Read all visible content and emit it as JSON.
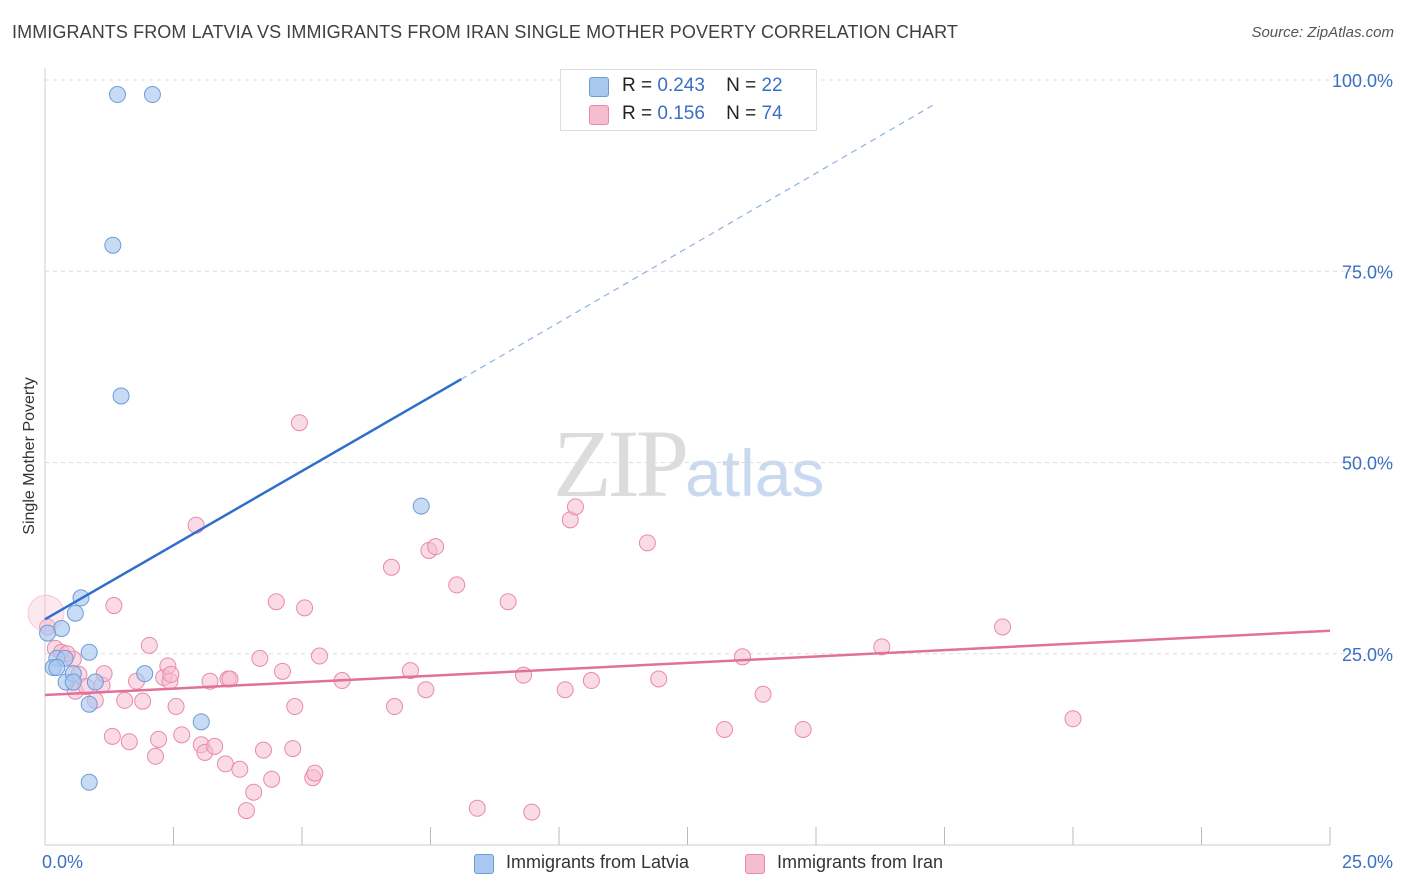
{
  "title": "IMMIGRANTS FROM LATVIA VS IMMIGRANTS FROM IRAN SINGLE MOTHER POVERTY CORRELATION CHART",
  "source": "Source: ZipAtlas.com",
  "watermark": {
    "zip": "ZIP",
    "atlas": "atlas"
  },
  "legend": {
    "rows": [
      {
        "r_label": "R =",
        "r_value": "0.243",
        "n_label": "N =",
        "n_value": "22"
      },
      {
        "r_label": "R =",
        "r_value": "0.156",
        "n_label": "N =",
        "n_value": "74"
      }
    ]
  },
  "colors": {
    "latvia_fill": "#a9c8f0",
    "latvia_stroke": "#6d9bd8",
    "latvia_line": "#2f6fcc",
    "iran_fill": "#f6bcd0",
    "iran_stroke": "#e88aab",
    "iran_line": "#e0719a",
    "axis_label": "#3b6fc4",
    "grid": "#dddddd"
  },
  "chart_data": {
    "type": "scatter",
    "title": "IMMIGRANTS FROM LATVIA VS IMMIGRANTS FROM IRAN SINGLE MOTHER POVERTY CORRELATION CHART",
    "xlabel": "",
    "ylabel": "Single Mother Poverty",
    "xlim": [
      0,
      25
    ],
    "ylim": [
      0,
      100
    ],
    "x_tick_labels": [
      "0.0%",
      "25.0%"
    ],
    "y_tick_labels": [
      "25.0%",
      "50.0%",
      "75.0%",
      "100.0%"
    ],
    "y_ticks": [
      25,
      50,
      75,
      100
    ],
    "grid": true,
    "legend_position": "top-center",
    "series": [
      {
        "name": "Immigrants from Latvia",
        "points": [
          [
            1.41,
            98.1
          ],
          [
            2.09,
            98.1
          ],
          [
            1.32,
            78.4
          ],
          [
            1.48,
            58.7
          ],
          [
            7.32,
            44.3
          ],
          [
            0.7,
            32.3
          ],
          [
            0.59,
            30.3
          ],
          [
            0.32,
            28.3
          ],
          [
            0.23,
            24.4
          ],
          [
            0.16,
            23.2
          ],
          [
            0.86,
            25.2
          ],
          [
            0.41,
            21.3
          ],
          [
            0.39,
            24.4
          ],
          [
            0.55,
            22.4
          ],
          [
            0.98,
            21.3
          ],
          [
            0.86,
            18.4
          ],
          [
            1.94,
            22.4
          ],
          [
            3.04,
            16.1
          ],
          [
            0.86,
            8.2
          ],
          [
            0.23,
            23.2
          ],
          [
            0.05,
            27.7
          ],
          [
            0.55,
            21.3
          ]
        ],
        "trend": {
          "x": [
            0,
            8.1
          ],
          "y": [
            29.5,
            60.9
          ],
          "dashed_to": {
            "x": 17.3,
            "y": 96.8
          }
        }
      },
      {
        "name": "Immigrants from Iran",
        "points": [
          [
            0.05,
            28.5
          ],
          [
            0.2,
            25.7
          ],
          [
            0.32,
            25.2
          ],
          [
            0.55,
            24.3
          ],
          [
            0.59,
            20.1
          ],
          [
            0.66,
            22.3
          ],
          [
            0.8,
            20.7
          ],
          [
            0.98,
            18.9
          ],
          [
            1.11,
            20.9
          ],
          [
            1.15,
            22.4
          ],
          [
            1.34,
            31.3
          ],
          [
            1.55,
            18.9
          ],
          [
            1.64,
            13.5
          ],
          [
            1.78,
            21.4
          ],
          [
            1.9,
            18.8
          ],
          [
            2.03,
            26.1
          ],
          [
            2.15,
            11.6
          ],
          [
            2.21,
            13.8
          ],
          [
            2.31,
            21.9
          ],
          [
            2.39,
            23.4
          ],
          [
            2.55,
            18.1
          ],
          [
            2.66,
            14.4
          ],
          [
            2.94,
            41.8
          ],
          [
            3.04,
            13.1
          ],
          [
            3.11,
            12.1
          ],
          [
            3.21,
            21.4
          ],
          [
            3.3,
            12.9
          ],
          [
            3.51,
            10.6
          ],
          [
            3.56,
            21.7
          ],
          [
            3.6,
            21.7
          ],
          [
            3.79,
            9.9
          ],
          [
            3.92,
            4.5
          ],
          [
            4.06,
            6.9
          ],
          [
            4.18,
            24.4
          ],
          [
            4.25,
            12.4
          ],
          [
            4.41,
            8.6
          ],
          [
            4.5,
            31.8
          ],
          [
            4.62,
            22.7
          ],
          [
            4.82,
            12.6
          ],
          [
            4.86,
            18.1
          ],
          [
            4.95,
            55.2
          ],
          [
            5.05,
            31.0
          ],
          [
            5.21,
            8.8
          ],
          [
            5.25,
            9.4
          ],
          [
            5.34,
            24.7
          ],
          [
            5.78,
            21.5
          ],
          [
            6.74,
            36.3
          ],
          [
            6.8,
            18.1
          ],
          [
            7.11,
            22.8
          ],
          [
            7.41,
            20.3
          ],
          [
            7.47,
            38.5
          ],
          [
            7.6,
            39.0
          ],
          [
            8.01,
            34.0
          ],
          [
            8.41,
            4.8
          ],
          [
            9.01,
            31.8
          ],
          [
            9.31,
            22.2
          ],
          [
            9.47,
            4.3
          ],
          [
            10.12,
            20.3
          ],
          [
            10.22,
            42.5
          ],
          [
            10.32,
            44.2
          ],
          [
            10.63,
            21.5
          ],
          [
            11.72,
            39.5
          ],
          [
            11.94,
            21.7
          ],
          [
            13.22,
            15.1
          ],
          [
            13.57,
            24.6
          ],
          [
            13.97,
            19.7
          ],
          [
            14.75,
            15.1
          ],
          [
            16.28,
            25.9
          ],
          [
            18.63,
            28.5
          ],
          [
            20.0,
            16.5
          ],
          [
            1.31,
            14.2
          ],
          [
            2.43,
            21.4
          ],
          [
            2.45,
            22.3
          ],
          [
            0.43,
            25.0
          ]
        ],
        "trend": {
          "x": [
            0,
            25
          ],
          "y": [
            19.6,
            28.0
          ]
        }
      }
    ]
  }
}
